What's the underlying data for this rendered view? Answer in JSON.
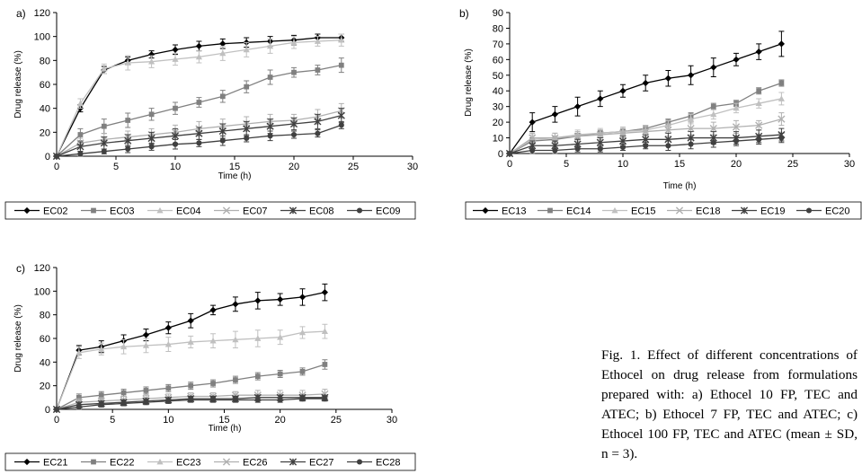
{
  "caption": "Fig. 1. Effect of different concentrations of Ethocel on drug release from formulations prepared with: a) Ethocel 10 FP, TEC and ATEC; b) Ethocel 7 FP, TEC and ATEC; c) Ethocel 100 FP, TEC and ATEC (mean ± SD, n = 3).",
  "chart_data": [
    {
      "panel_label": "a)",
      "type": "line",
      "xlabel": "Time (h)",
      "ylabel": "Drug release (%)",
      "xlim": [
        0,
        30
      ],
      "ylim": [
        0,
        120
      ],
      "xticks": [
        0,
        5,
        10,
        15,
        20,
        25,
        30
      ],
      "yticks": [
        0,
        20,
        40,
        60,
        80,
        100,
        120
      ],
      "grid": false,
      "legend": "bottom",
      "x": [
        0,
        2,
        4,
        6,
        8,
        10,
        12,
        14,
        16,
        18,
        20,
        22,
        24
      ],
      "series": [
        {
          "name": "EC02",
          "marker": "diamond",
          "color": "#000000",
          "values": [
            0,
            40,
            72,
            80,
            85,
            89,
            92,
            94,
            95,
            96,
            97,
            99,
            99
          ],
          "sd": [
            0,
            3,
            3,
            3,
            3,
            4,
            4,
            4,
            4,
            4,
            4,
            3,
            3
          ]
        },
        {
          "name": "EC03",
          "marker": "square",
          "color": "#808080",
          "values": [
            0,
            18,
            25,
            30,
            35,
            40,
            45,
            50,
            58,
            66,
            70,
            72,
            76
          ],
          "sd": [
            0,
            5,
            6,
            6,
            5,
            5,
            4,
            5,
            5,
            6,
            4,
            4,
            6
          ]
        },
        {
          "name": "EC04",
          "marker": "triangle",
          "color": "#c0c0c0",
          "values": [
            0,
            44,
            73,
            78,
            79,
            81,
            83,
            86,
            89,
            92,
            95,
            96,
            97
          ],
          "sd": [
            0,
            4,
            4,
            6,
            5,
            5,
            5,
            6,
            6,
            6,
            5,
            4,
            5
          ]
        },
        {
          "name": "EC07",
          "marker": "x",
          "color": "#b0b0b0",
          "values": [
            0,
            11,
            14,
            16,
            18,
            20,
            23,
            25,
            27,
            29,
            30,
            33,
            38
          ],
          "sd": [
            0,
            4,
            5,
            5,
            5,
            6,
            6,
            6,
            6,
            6,
            5,
            6,
            6
          ]
        },
        {
          "name": "EC08",
          "marker": "asterisk",
          "color": "#404040",
          "values": [
            0,
            8,
            11,
            13,
            15,
            17,
            19,
            21,
            23,
            25,
            27,
            29,
            34
          ],
          "sd": [
            0,
            4,
            5,
            5,
            5,
            6,
            5,
            6,
            6,
            6,
            5,
            6,
            6
          ]
        },
        {
          "name": "EC09",
          "marker": "circle",
          "color": "#404040",
          "values": [
            0,
            2,
            4,
            6,
            8,
            10,
            11,
            13,
            15,
            17,
            18,
            19,
            26
          ],
          "sd": [
            0,
            2,
            2,
            3,
            3,
            4,
            3,
            4,
            3,
            4,
            3,
            3,
            3
          ]
        }
      ]
    },
    {
      "panel_label": "b)",
      "type": "line",
      "xlabel": "Time (h)",
      "ylabel": "Drug release (%)",
      "xlim": [
        0,
        30
      ],
      "ylim": [
        0,
        90
      ],
      "xticks": [
        0,
        5,
        10,
        15,
        20,
        25,
        30
      ],
      "yticks": [
        0,
        10,
        20,
        30,
        40,
        50,
        60,
        70,
        80,
        90
      ],
      "grid": false,
      "legend": "bottom",
      "x": [
        0,
        2,
        4,
        6,
        8,
        10,
        12,
        14,
        16,
        18,
        20,
        22,
        24
      ],
      "series": [
        {
          "name": "EC13",
          "marker": "diamond",
          "color": "#000000",
          "values": [
            0,
            20,
            25,
            30,
            35,
            40,
            45,
            48,
            50,
            55,
            60,
            65,
            70
          ],
          "sd": [
            0,
            6,
            5,
            6,
            5,
            4,
            5,
            5,
            6,
            6,
            4,
            5,
            8
          ]
        },
        {
          "name": "EC14",
          "marker": "square",
          "color": "#808080",
          "values": [
            0,
            8,
            9,
            11,
            13,
            14,
            16,
            20,
            24,
            30,
            32,
            40,
            45
          ],
          "sd": [
            0,
            2,
            2,
            2,
            2,
            2,
            2,
            2,
            2,
            2,
            2,
            2,
            2
          ]
        },
        {
          "name": "EC15",
          "marker": "triangle",
          "color": "#c0c0c0",
          "values": [
            0,
            9,
            10,
            12,
            13,
            14,
            15,
            18,
            22,
            25,
            29,
            32,
            35
          ],
          "sd": [
            0,
            3,
            3,
            3,
            3,
            3,
            3,
            3,
            3,
            3,
            3,
            3,
            4
          ]
        },
        {
          "name": "EC18",
          "marker": "x",
          "color": "#b0b0b0",
          "values": [
            0,
            10,
            10,
            11,
            12,
            13,
            14,
            15,
            16,
            16,
            17,
            18,
            22
          ],
          "sd": [
            0,
            3,
            3,
            3,
            3,
            3,
            3,
            4,
            4,
            4,
            4,
            3,
            4
          ]
        },
        {
          "name": "EC19",
          "marker": "asterisk",
          "color": "#404040",
          "values": [
            0,
            5,
            5,
            6,
            7,
            8,
            9,
            9,
            10,
            10,
            10,
            11,
            12
          ],
          "sd": [
            0,
            3,
            3,
            3,
            3,
            3,
            3,
            4,
            4,
            4,
            4,
            4,
            4
          ]
        },
        {
          "name": "EC20",
          "marker": "circle",
          "color": "#404040",
          "values": [
            0,
            2,
            2,
            3,
            3,
            4,
            5,
            5,
            6,
            7,
            8,
            9,
            10
          ],
          "sd": [
            0,
            2,
            2,
            2,
            2,
            2,
            2,
            3,
            3,
            3,
            3,
            3,
            3
          ]
        }
      ]
    },
    {
      "panel_label": "c)",
      "type": "line",
      "xlabel": "Time (h)",
      "ylabel": "Drug release (%)",
      "xlim": [
        0,
        30
      ],
      "ylim": [
        0,
        120
      ],
      "xticks": [
        0,
        5,
        10,
        15,
        20,
        25,
        30
      ],
      "yticks": [
        0,
        20,
        40,
        60,
        80,
        100,
        120
      ],
      "grid": false,
      "legend": "bottom",
      "x": [
        0,
        2,
        4,
        6,
        8,
        10,
        12,
        14,
        16,
        18,
        20,
        22,
        24
      ],
      "series": [
        {
          "name": "EC21",
          "marker": "diamond",
          "color": "#000000",
          "values": [
            0,
            50,
            53,
            58,
            63,
            69,
            75,
            84,
            89,
            92,
            93,
            95,
            99
          ],
          "sd": [
            0,
            4,
            5,
            5,
            5,
            5,
            6,
            4,
            6,
            7,
            5,
            7,
            7
          ]
        },
        {
          "name": "EC22",
          "marker": "square",
          "color": "#808080",
          "values": [
            0,
            10,
            12,
            14,
            16,
            18,
            20,
            22,
            25,
            28,
            30,
            32,
            38
          ],
          "sd": [
            0,
            3,
            3,
            3,
            3,
            3,
            3,
            3,
            3,
            3,
            3,
            3,
            4
          ]
        },
        {
          "name": "EC23",
          "marker": "triangle",
          "color": "#c0c0c0",
          "values": [
            0,
            48,
            51,
            53,
            54,
            55,
            57,
            58,
            59,
            60,
            61,
            65,
            66
          ],
          "sd": [
            0,
            5,
            5,
            6,
            6,
            6,
            5,
            6,
            7,
            7,
            6,
            5,
            6
          ]
        },
        {
          "name": "EC26",
          "marker": "x",
          "color": "#b0b0b0",
          "values": [
            0,
            6,
            7,
            8,
            9,
            10,
            11,
            11,
            12,
            12,
            12,
            12,
            13
          ],
          "sd": [
            0,
            3,
            3,
            3,
            3,
            3,
            3,
            3,
            3,
            4,
            4,
            4,
            4
          ]
        },
        {
          "name": "EC27",
          "marker": "asterisk",
          "color": "#404040",
          "values": [
            0,
            4,
            5,
            6,
            7,
            8,
            9,
            9,
            9,
            10,
            10,
            10,
            10
          ],
          "sd": [
            0,
            2,
            2,
            2,
            2,
            2,
            2,
            2,
            2,
            2,
            2,
            2,
            2
          ]
        },
        {
          "name": "EC28",
          "marker": "circle",
          "color": "#404040",
          "values": [
            0,
            2,
            4,
            5,
            6,
            7,
            8,
            8,
            8,
            8,
            8,
            9,
            9
          ],
          "sd": [
            0,
            2,
            2,
            2,
            2,
            2,
            2,
            2,
            2,
            2,
            2,
            2,
            2
          ]
        }
      ]
    }
  ]
}
